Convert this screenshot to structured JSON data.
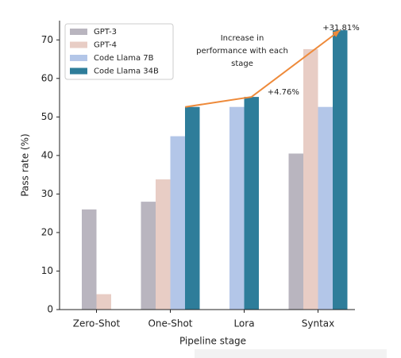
{
  "chart_data": {
    "type": "bar",
    "xlabel": "Pipeline stage",
    "ylabel": "Pass rate (%)",
    "categories": [
      "Zero-Shot",
      "One-Shot",
      "Lora",
      "Syntax"
    ],
    "series": [
      {
        "name": "GPT-3",
        "color": "#b9b5bf",
        "values": [
          26,
          28,
          null,
          40.5
        ]
      },
      {
        "name": "GPT-4",
        "color": "#e8cdc5",
        "values": [
          4,
          33.8,
          null,
          67.6
        ]
      },
      {
        "name": "Code Llama 7B",
        "color": "#b3c6e8",
        "values": [
          null,
          45,
          52.6,
          52.6
        ]
      },
      {
        "name": "Code Llama 34B",
        "color": "#2e7d9a",
        "values": [
          null,
          52.6,
          55.2,
          72.5
        ]
      }
    ],
    "ylim": [
      0,
      75
    ],
    "yticks": [
      0,
      10,
      20,
      30,
      40,
      50,
      60,
      70
    ],
    "legend": "upper left",
    "annotations": {
      "note": [
        "Increase in",
        "performance with each",
        "stage"
      ],
      "gain_lora": "+4.76%",
      "gain_syntax": "+31.81%"
    }
  }
}
